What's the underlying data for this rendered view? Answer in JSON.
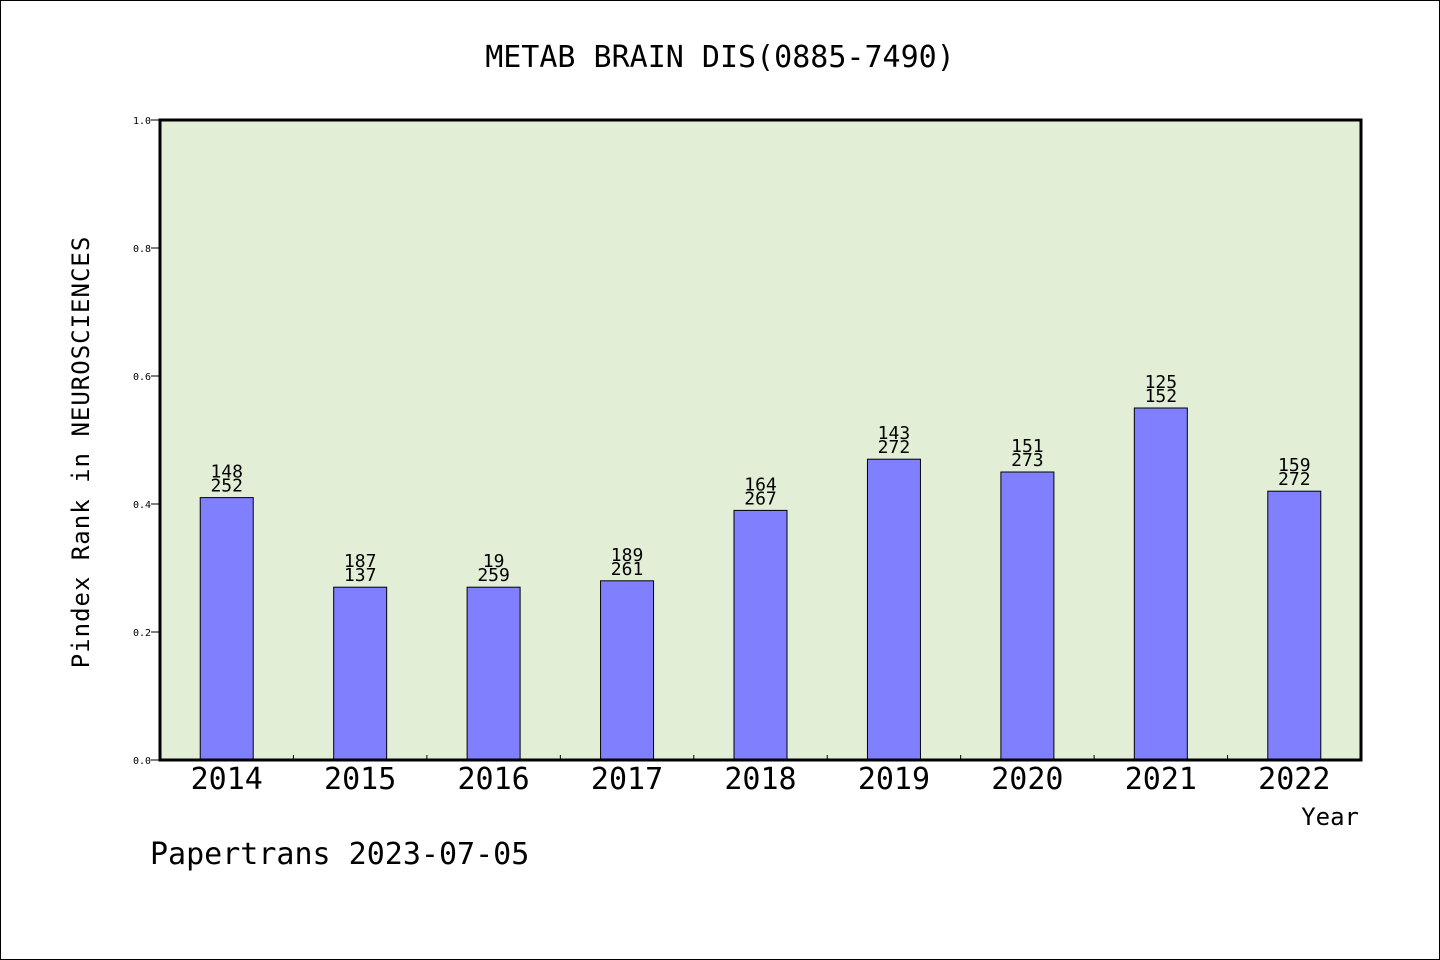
{
  "chart_data": {
    "type": "bar",
    "title": "METAB BRAIN DIS(0885-7490)",
    "xlabel": "Year",
    "ylabel": "Pindex Rank in NEUROSCIENCES",
    "ylim": [
      0.0,
      1.0
    ],
    "yticks": [
      "0.0",
      "0.2",
      "0.4",
      "0.6",
      "0.8",
      "1.0"
    ],
    "ytick_values": [
      0.0,
      0.2,
      0.4,
      0.6,
      0.8,
      1.0
    ],
    "categories": [
      "2014",
      "2015",
      "2016",
      "2017",
      "2018",
      "2019",
      "2020",
      "2021",
      "2022"
    ],
    "values": [
      0.41,
      0.27,
      0.27,
      0.28,
      0.39,
      0.47,
      0.45,
      0.55,
      0.42
    ],
    "label_top": [
      "148",
      "187",
      "19",
      "189",
      "164",
      "143",
      "151",
      "125",
      "159"
    ],
    "label_bottom": [
      "252",
      "137",
      "259",
      "261",
      "267",
      "272",
      "273",
      "152",
      "272"
    ],
    "grid": false,
    "colors": {
      "plot_background": "#e2efd6",
      "bar_fill": "#8080ff",
      "bar_edge": "#000000"
    }
  },
  "footer": "Papertrans 2023-07-05"
}
